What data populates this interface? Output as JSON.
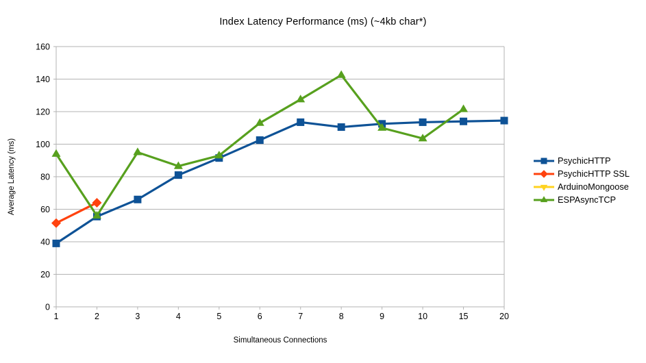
{
  "chart_data": {
    "type": "line",
    "title": "Index Latency Performance (ms) (~4kb char*)",
    "xlabel": "Simultaneous Connections",
    "ylabel": "Average Latency (ms)",
    "categories": [
      "1",
      "2",
      "3",
      "4",
      "5",
      "6",
      "7",
      "8",
      "9",
      "10",
      "15",
      "20"
    ],
    "ylim": [
      0,
      160
    ],
    "ytick_step": 20,
    "grid": "horizontal",
    "legend_position": "right",
    "series": [
      {
        "name": "PsychicHTTP",
        "color": "#0E5296",
        "marker": "square",
        "values": [
          39,
          55.5,
          66,
          81,
          91.5,
          102.5,
          113.5,
          110.5,
          112.5,
          113.5,
          114,
          114.5
        ]
      },
      {
        "name": "PsychicHTTP SSL",
        "color": "#FF420E",
        "marker": "diamond",
        "values": [
          51.5,
          64,
          null,
          null,
          null,
          null,
          null,
          null,
          null,
          null,
          null,
          null
        ]
      },
      {
        "name": "ArduinoMongoose",
        "color": "#FFD320",
        "marker": "triangle-down",
        "values": [
          null,
          null,
          null,
          null,
          null,
          null,
          null,
          null,
          null,
          null,
          null,
          null
        ]
      },
      {
        "name": "ESPAsyncTCP",
        "color": "#57A01E",
        "marker": "triangle-up",
        "values": [
          94,
          56,
          95,
          86.5,
          93,
          113,
          127.5,
          142.5,
          110,
          103.5,
          121.5,
          null
        ]
      }
    ]
  },
  "colors": {
    "grid": "#b3b3b3",
    "axis": "#b3b3b3",
    "text": "#000000",
    "background": "#ffffff"
  }
}
